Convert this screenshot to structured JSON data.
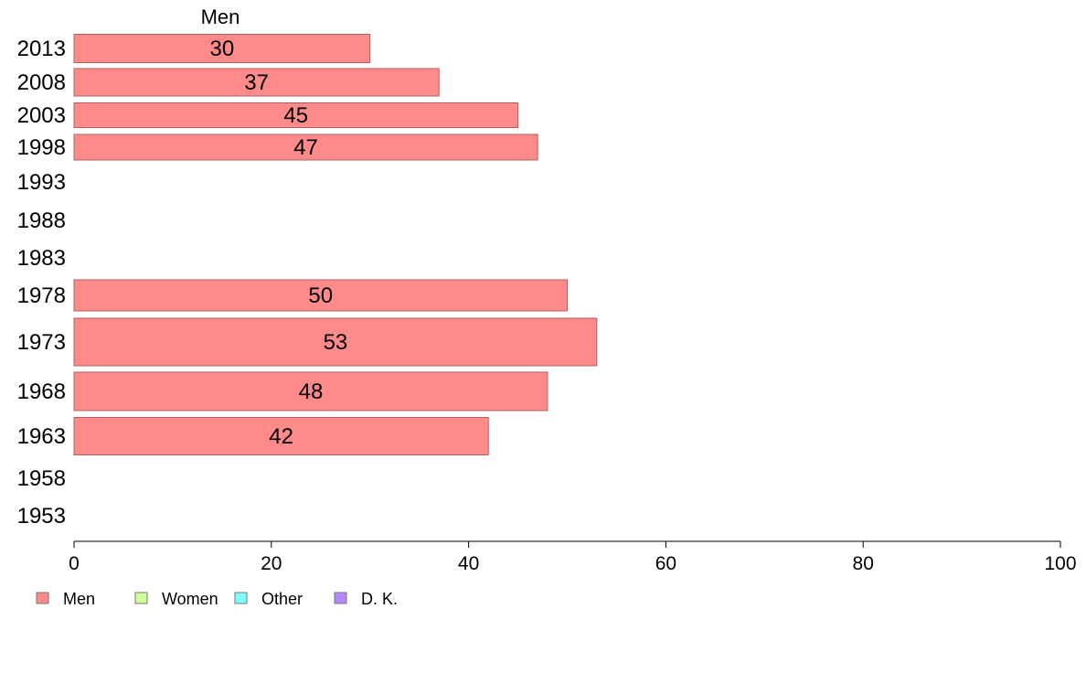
{
  "chart_data": {
    "type": "bar",
    "orientation": "horizontal",
    "title": "",
    "xlabel": "",
    "ylabel": "",
    "xlim": [
      0,
      100
    ],
    "x_ticks": [
      0,
      20,
      40,
      60,
      80,
      100
    ],
    "grid": false,
    "legend_placement": "bottom-left",
    "categories": [
      "2013",
      "2008",
      "2003",
      "1998",
      "1993",
      "1988",
      "1983",
      "1978",
      "1973",
      "1968",
      "1963",
      "1958",
      "1953"
    ],
    "series": [
      {
        "name": "Men",
        "color": "#ff8a8a",
        "values": [
          30,
          37,
          45,
          47,
          null,
          null,
          null,
          50,
          53,
          48,
          42,
          null,
          null
        ],
        "data_labels": [
          "30",
          "37",
          "45",
          "47",
          "",
          "",
          "",
          "50",
          "53",
          "48",
          "42",
          "",
          ""
        ]
      }
    ],
    "series_header": "Men",
    "legend": [
      {
        "label": "Men",
        "color": "#ff8a8a"
      },
      {
        "label": "Women",
        "color": "#ccff99"
      },
      {
        "label": "Other",
        "color": "#80ffff"
      },
      {
        "label": "D. K.",
        "color": "#b388ff"
      }
    ]
  }
}
